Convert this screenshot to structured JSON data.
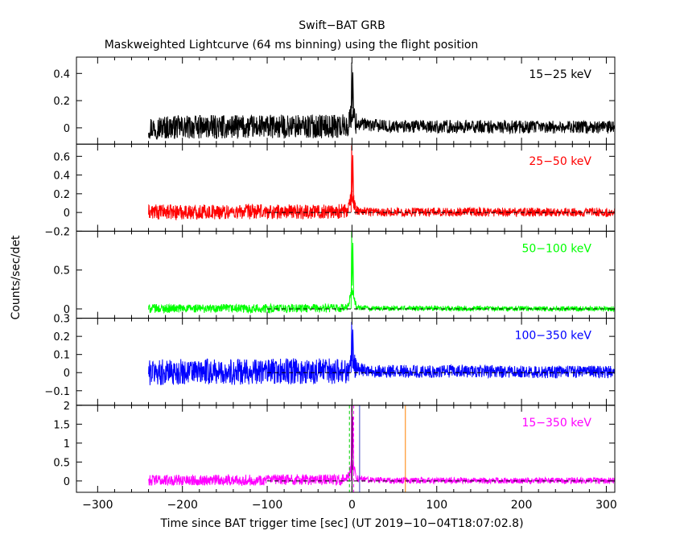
{
  "chart_data": {
    "type": "line",
    "title": "Swift−BAT GRB",
    "subtitle": "Maskweighted Lightcurve (64 ms binning) using the flight position",
    "xlabel": "Time since BAT trigger time [sec] (UT 2019−10−04T18:07:02.8)",
    "ylabel": "Counts/sec/det",
    "xlim": [
      -325,
      310
    ],
    "x_ticks": [
      -300,
      -200,
      -100,
      0,
      100,
      200,
      300
    ],
    "x_tick_labels": [
      "−300",
      "−200",
      "−100",
      "0",
      "100",
      "200",
      "300"
    ],
    "data_start": -240,
    "trigger_time": 0,
    "binning_sec": 0.064,
    "panels": [
      {
        "name": "15−25 keV",
        "color": "#000000",
        "ylim": [
          -0.12,
          0.52
        ],
        "y_ticks": [
          0,
          0.2,
          0.4
        ],
        "y_tick_labels": [
          "0",
          "0.2",
          "0.4"
        ],
        "zero_line": false,
        "noise_pre": 0.055,
        "noise_post": 0.03,
        "peak": 0.48,
        "post_level": 0.03,
        "envelope": [
          [
            -240,
            0.01
          ],
          [
            -100,
            0.03
          ],
          [
            -5,
            0.05
          ],
          [
            0,
            0.48
          ],
          [
            5,
            0.12
          ],
          [
            20,
            0.08
          ],
          [
            40,
            0.04
          ],
          [
            100,
            0.03
          ],
          [
            310,
            0.02
          ]
        ]
      },
      {
        "name": "25−50 keV",
        "color": "#ff0000",
        "ylim": [
          -0.2,
          0.73
        ],
        "y_ticks": [
          -0.2,
          0,
          0.2,
          0.4,
          0.6
        ],
        "y_tick_labels": [
          "−0.2",
          "0",
          "0.2",
          "0.4",
          "0.6"
        ],
        "zero_line": true,
        "noise_pre": 0.05,
        "noise_post": 0.03,
        "peak": 0.72,
        "post_level": 0.0,
        "envelope": [
          [
            -240,
            0.02
          ],
          [
            -100,
            0.03
          ],
          [
            -5,
            0.05
          ],
          [
            0,
            0.72
          ],
          [
            5,
            0.1
          ],
          [
            20,
            0.05
          ],
          [
            40,
            0.02
          ],
          [
            310,
            0.01
          ]
        ]
      },
      {
        "name": "50−100 keV",
        "color": "#00ff00",
        "ylim": [
          -0.12,
          1.0
        ],
        "y_ticks": [
          0,
          0.5
        ],
        "y_tick_labels": [
          "0",
          "0.5"
        ],
        "zero_line": true,
        "noise_pre": 0.035,
        "noise_post": 0.02,
        "peak": 1.0,
        "post_level": 0.0,
        "envelope": [
          [
            -240,
            0.02
          ],
          [
            -100,
            0.02
          ],
          [
            -5,
            0.04
          ],
          [
            0,
            1.0
          ],
          [
            5,
            0.08
          ],
          [
            20,
            0.03
          ],
          [
            310,
            0.01
          ]
        ]
      },
      {
        "name": "100−350 keV",
        "color": "#0000ff",
        "ylim": [
          -0.18,
          0.3
        ],
        "y_ticks": [
          -0.1,
          0,
          0.1,
          0.2,
          0.3
        ],
        "y_tick_labels": [
          "−0.1",
          "0",
          "0.1",
          "0.2",
          "0.3"
        ],
        "zero_line": true,
        "noise_pre": 0.045,
        "noise_post": 0.022,
        "peak": 0.28,
        "post_level": 0.0,
        "envelope": [
          [
            -240,
            0.01
          ],
          [
            -100,
            0.02
          ],
          [
            -5,
            0.04
          ],
          [
            0,
            0.28
          ],
          [
            5,
            0.1
          ],
          [
            20,
            0.03
          ],
          [
            310,
            0.01
          ]
        ]
      },
      {
        "name": "15−350 keV",
        "color": "#ff00ff",
        "ylim": [
          -0.3,
          2.0
        ],
        "y_ticks": [
          0,
          0.5,
          1,
          1.5,
          2
        ],
        "y_tick_labels": [
          "0",
          "0.5",
          "1",
          "1.5",
          "2"
        ],
        "zero_line": true,
        "noise_pre": 0.09,
        "noise_post": 0.05,
        "peak": 2.0,
        "post_level": 0.0,
        "envelope": [
          [
            -240,
            0.08
          ],
          [
            -100,
            0.1
          ],
          [
            -5,
            0.15
          ],
          [
            0,
            2.0
          ],
          [
            5,
            0.3
          ],
          [
            20,
            0.12
          ],
          [
            40,
            0.05
          ],
          [
            310,
            0.02
          ]
        ],
        "markers": [
          {
            "x": -3,
            "color": "#00cc00",
            "style": "dashed"
          },
          {
            "x": 2,
            "color": "#ff00ff",
            "style": "dashed"
          },
          {
            "x": 0,
            "color": "#000000",
            "style": "solid"
          },
          {
            "x": 9,
            "color": "#4040c0",
            "style": "solid"
          },
          {
            "x": 63,
            "color": "#ff8000",
            "style": "solid"
          }
        ]
      }
    ]
  }
}
